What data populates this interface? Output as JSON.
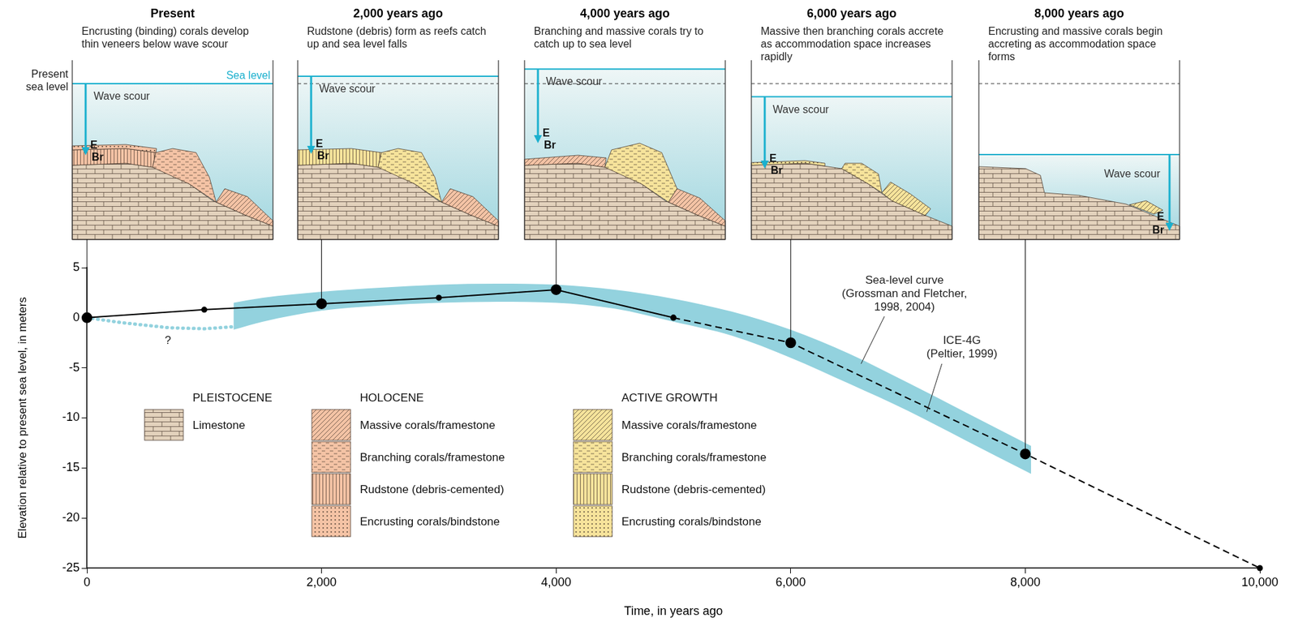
{
  "chart_data": {
    "type": "line",
    "xlabel": "Time, in years ago",
    "ylabel": "Elevation relative to present sea level, in meters",
    "xlim": [
      0,
      10000
    ],
    "xticks": [
      0,
      {
        "value": 2000,
        "label": "2,000"
      },
      {
        "value": 4000,
        "label": "4,000"
      },
      {
        "value": 6000,
        "label": "6,000"
      },
      {
        "value": 8000,
        "label": "8,000"
      },
      {
        "value": 10000,
        "label": "10,000"
      }
    ],
    "ylim": [
      -25,
      5
    ],
    "yticks": [
      -25,
      -20,
      -15,
      -10,
      -5,
      0,
      5
    ],
    "grid": false,
    "series": [
      {
        "type": "band",
        "color": "#93d2de",
        "x": [
          1250,
          1500,
          2000,
          2500,
          3000,
          3500,
          4000,
          4500,
          5000,
          5500,
          6000,
          6500,
          7000,
          7500,
          8000,
          8050
        ],
        "lower": [
          -1.2,
          -0.4,
          0.7,
          1.2,
          1.5,
          1.6,
          1.5,
          0.9,
          -0.4,
          -1.8,
          -4.0,
          -6.6,
          -9.3,
          -12.3,
          -15.3,
          -15.6
        ],
        "upper": [
          1.5,
          2.0,
          2.6,
          3.0,
          3.3,
          3.4,
          3.3,
          2.8,
          1.9,
          0.6,
          -1.2,
          -3.6,
          -6.5,
          -9.5,
          -12.5,
          -12.8
        ]
      },
      {
        "type": "line",
        "color": "#93d2de",
        "line_style": "dotted",
        "x": [
          0,
          300,
          700,
          1000,
          1250
        ],
        "values": [
          0,
          -0.5,
          -1.0,
          -1.1,
          -0.9
        ]
      },
      {
        "type": "line",
        "color": "#000000",
        "line_style": "solid",
        "marker": "circle",
        "x": [
          0,
          1000,
          2000,
          3000,
          4000,
          5000
        ],
        "values": [
          0,
          0.8,
          1.4,
          2.0,
          2.8,
          0
        ]
      },
      {
        "type": "line",
        "color": "#000000",
        "line_style": "dashed",
        "marker": "circle",
        "x": [
          5000,
          6000,
          8000,
          10000
        ],
        "values": [
          0,
          -2.5,
          -13.6,
          -25
        ]
      },
      {
        "type": "scatter",
        "color": "#000000",
        "marker": "circle",
        "x": [
          0,
          2000,
          4000,
          6000,
          8000
        ],
        "values": [
          0,
          1.4,
          2.8,
          -2.5,
          -13.6
        ]
      }
    ],
    "annotations": [
      {
        "text": "Sea-level curve (Grossman and Fletcher, 1998, 2004)",
        "x": 6970,
        "y": 2.4,
        "arrow_to": [
          6600,
          -4.6
        ]
      },
      {
        "text": "ICE-4G (Peltier, 1999)",
        "x": 7460,
        "y": -3.0,
        "arrow_to": [
          7160,
          -9.4
        ]
      },
      {
        "text": "?",
        "x": 690,
        "y": -2.3
      }
    ]
  },
  "panels": [
    {
      "title": "Present",
      "caption": "Encrusting (binding) corals develop thin veneers below wave scour"
    },
    {
      "title": "2,000 years ago",
      "caption": "Rudstone (debris) form as reefs catch up and sea level falls"
    },
    {
      "title": "4,000 years ago",
      "caption": "Branching and massive corals try to catch up to sea level"
    },
    {
      "title": "6,000 years ago",
      "caption": "Massive then branching corals accrete as accommodation space increases rapidly"
    },
    {
      "title": "8,000 years ago",
      "caption": "Encrusting and massive corals begin accreting as accommodation space forms"
    }
  ],
  "panel_labels": {
    "wave_scour": "Wave scour",
    "encrusting": "E",
    "branching": "Br",
    "sea_level": "Sea level",
    "present_sea_level": "Present sea level"
  },
  "legend_key": [
    {
      "heading": "PLEISTOCENE",
      "color": "#e3d2bc",
      "items": [
        {
          "label": "Limestone",
          "pattern": "limestone"
        }
      ]
    },
    {
      "heading": "HOLOCENE",
      "color": "#f4c3a5",
      "items": [
        {
          "label": "Massive corals/framestone",
          "pattern": "massive"
        },
        {
          "label": "Branching corals/framestone",
          "pattern": "branching"
        },
        {
          "label": "Rudstone (debris-cemented)",
          "pattern": "rudstone"
        },
        {
          "label": "Encrusting corals/bindstone",
          "pattern": "encrusting"
        }
      ]
    },
    {
      "heading": "ACTIVE GROWTH",
      "color": "#f6e39b",
      "items": [
        {
          "label": "Massive corals/framestone",
          "pattern": "massive"
        },
        {
          "label": "Branching corals/framestone",
          "pattern": "branching"
        },
        {
          "label": "Rudstone (debris-cemented)",
          "pattern": "rudstone"
        },
        {
          "label": "Encrusting corals/bindstone",
          "pattern": "encrusting"
        }
      ]
    }
  ]
}
